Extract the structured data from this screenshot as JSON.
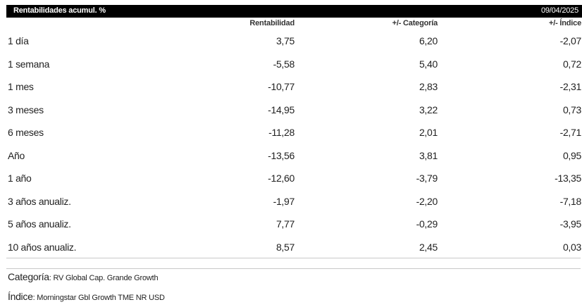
{
  "header": {
    "title": "Rentabilidades acumul. %",
    "date": "09/04/2025"
  },
  "columns": {
    "col1": "Rentabilidad",
    "col2": "+/- Categoría",
    "col3": "+/- Índice"
  },
  "rows": [
    {
      "label": "1 día",
      "rentabilidad": "3,75",
      "categoria": "6,20",
      "indice": "-2,07"
    },
    {
      "label": "1 semana",
      "rentabilidad": "-5,58",
      "categoria": "5,40",
      "indice": "0,72"
    },
    {
      "label": "1 mes",
      "rentabilidad": "-10,77",
      "categoria": "2,83",
      "indice": "-2,31"
    },
    {
      "label": "3 meses",
      "rentabilidad": "-14,95",
      "categoria": "3,22",
      "indice": "0,73"
    },
    {
      "label": "6 meses",
      "rentabilidad": "-11,28",
      "categoria": "2,01",
      "indice": "-2,71"
    },
    {
      "label": "Año",
      "rentabilidad": "-13,56",
      "categoria": "3,81",
      "indice": "0,95"
    },
    {
      "label": "1 año",
      "rentabilidad": "-12,60",
      "categoria": "-3,79",
      "indice": "-13,35"
    },
    {
      "label": "3 años anualiz.",
      "rentabilidad": "-1,97",
      "categoria": "-2,20",
      "indice": "-7,18"
    },
    {
      "label": "5 años anualiz.",
      "rentabilidad": "7,77",
      "categoria": "-0,29",
      "indice": "-3,95"
    },
    {
      "label": "10 años anualiz.",
      "rentabilidad": "8,57",
      "categoria": "2,45",
      "indice": "0,03"
    }
  ],
  "footer": {
    "category_label": "Categoría",
    "category_value": ": RV Global Cap. Grande Growth",
    "index_label": "Índice",
    "index_value": ": Morningstar Gbl Growth TME NR USD"
  }
}
